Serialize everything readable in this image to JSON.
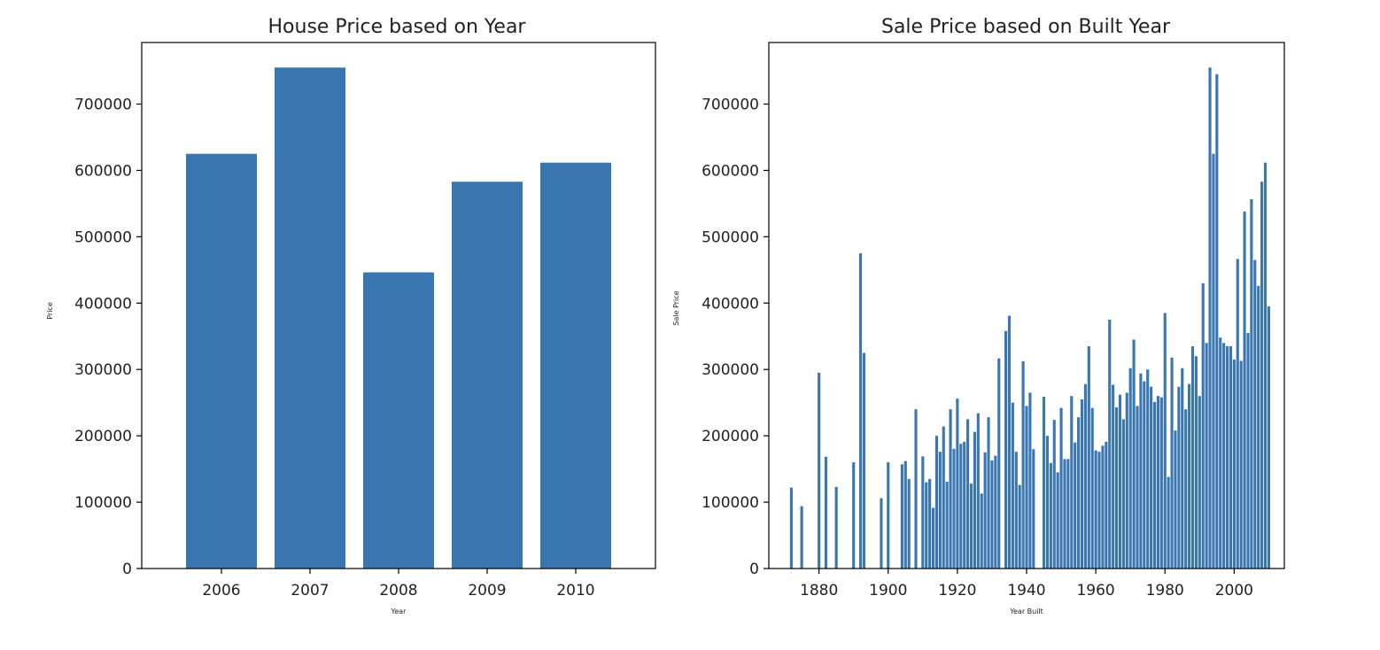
{
  "colors": {
    "bar": "#3a76b0",
    "axes": "#000000",
    "background": "#ffffff"
  },
  "chart_data": [
    {
      "type": "bar",
      "title": "House Price based on Year",
      "xlabel": "Year",
      "ylabel": "Price",
      "categories": [
        "2006",
        "2007",
        "2008",
        "2009",
        "2010"
      ],
      "values": [
        625000,
        755000,
        446358,
        582933,
        611657
      ],
      "ylim": [
        0,
        792750
      ],
      "yticks": [
        "0",
        "100000",
        "200000",
        "300000",
        "400000",
        "500000",
        "600000",
        "700000"
      ],
      "grid": false
    },
    {
      "type": "bar",
      "title": "Sale Price based on Built Year",
      "xlabel": "Year Built",
      "ylabel": "Sale Price",
      "xlim": [
        1865.5,
        2014.5
      ],
      "ylim": [
        0,
        792750
      ],
      "xticks": [
        "1880",
        "1900",
        "1920",
        "1940",
        "1960",
        "1980",
        "2000"
      ],
      "yticks": [
        "0",
        "100000",
        "200000",
        "300000",
        "400000",
        "500000",
        "600000",
        "700000"
      ],
      "grid": false,
      "x": [
        1872,
        1875,
        1880,
        1882,
        1885,
        1890,
        1892,
        1893,
        1898,
        1900,
        1904,
        1905,
        1906,
        1908,
        1910,
        1911,
        1912,
        1913,
        1914,
        1915,
        1916,
        1917,
        1918,
        1919,
        1920,
        1921,
        1922,
        1923,
        1924,
        1925,
        1926,
        1927,
        1928,
        1929,
        1930,
        1931,
        1932,
        1934,
        1935,
        1936,
        1937,
        1938,
        1939,
        1940,
        1941,
        1942,
        1945,
        1946,
        1947,
        1948,
        1949,
        1950,
        1951,
        1952,
        1953,
        1954,
        1955,
        1956,
        1957,
        1958,
        1959,
        1960,
        1961,
        1962,
        1963,
        1964,
        1965,
        1966,
        1967,
        1968,
        1969,
        1970,
        1971,
        1972,
        1973,
        1974,
        1975,
        1976,
        1977,
        1978,
        1979,
        1980,
        1981,
        1982,
        1983,
        1984,
        1985,
        1986,
        1987,
        1988,
        1989,
        1990,
        1991,
        1992,
        1993,
        1994,
        1995,
        1996,
        1997,
        1998,
        1999,
        2000,
        2001,
        2002,
        2003,
        2004,
        2005,
        2006,
        2007,
        2008,
        2009,
        2010
      ],
      "values": [
        122000,
        94000,
        295000,
        168500,
        122900,
        160000,
        475000,
        325000,
        106000,
        160000,
        157000,
        162000,
        135000,
        240000,
        169000,
        130000,
        135000,
        91500,
        200000,
        176000,
        214000,
        131000,
        240000,
        180500,
        256000,
        188000,
        191000,
        225000,
        128000,
        206000,
        234000,
        113000,
        175000,
        228000,
        163000,
        170000,
        316600,
        358000,
        381000,
        250000,
        176000,
        126000,
        312500,
        245000,
        265000,
        179900,
        259000,
        200000,
        159000,
        224000,
        145000,
        242000,
        165000,
        165000,
        260000,
        190000,
        228000,
        255000,
        278000,
        335000,
        242000,
        178000,
        176000,
        185000,
        191000,
        375000,
        277000,
        243000,
        262000,
        225000,
        265000,
        302000,
        345000,
        245000,
        294000,
        282000,
        300000,
        274000,
        251000,
        260000,
        258000,
        385000,
        138000,
        318000,
        208000,
        274000,
        302000,
        240000,
        278000,
        335000,
        320000,
        260000,
        430000,
        340000,
        755000,
        625000,
        745000,
        348000,
        340000,
        335000,
        335000,
        315000,
        466500,
        313000,
        538000,
        355000,
        556581,
        465000,
        426000,
        582933,
        611657,
        395000
      ]
    }
  ]
}
